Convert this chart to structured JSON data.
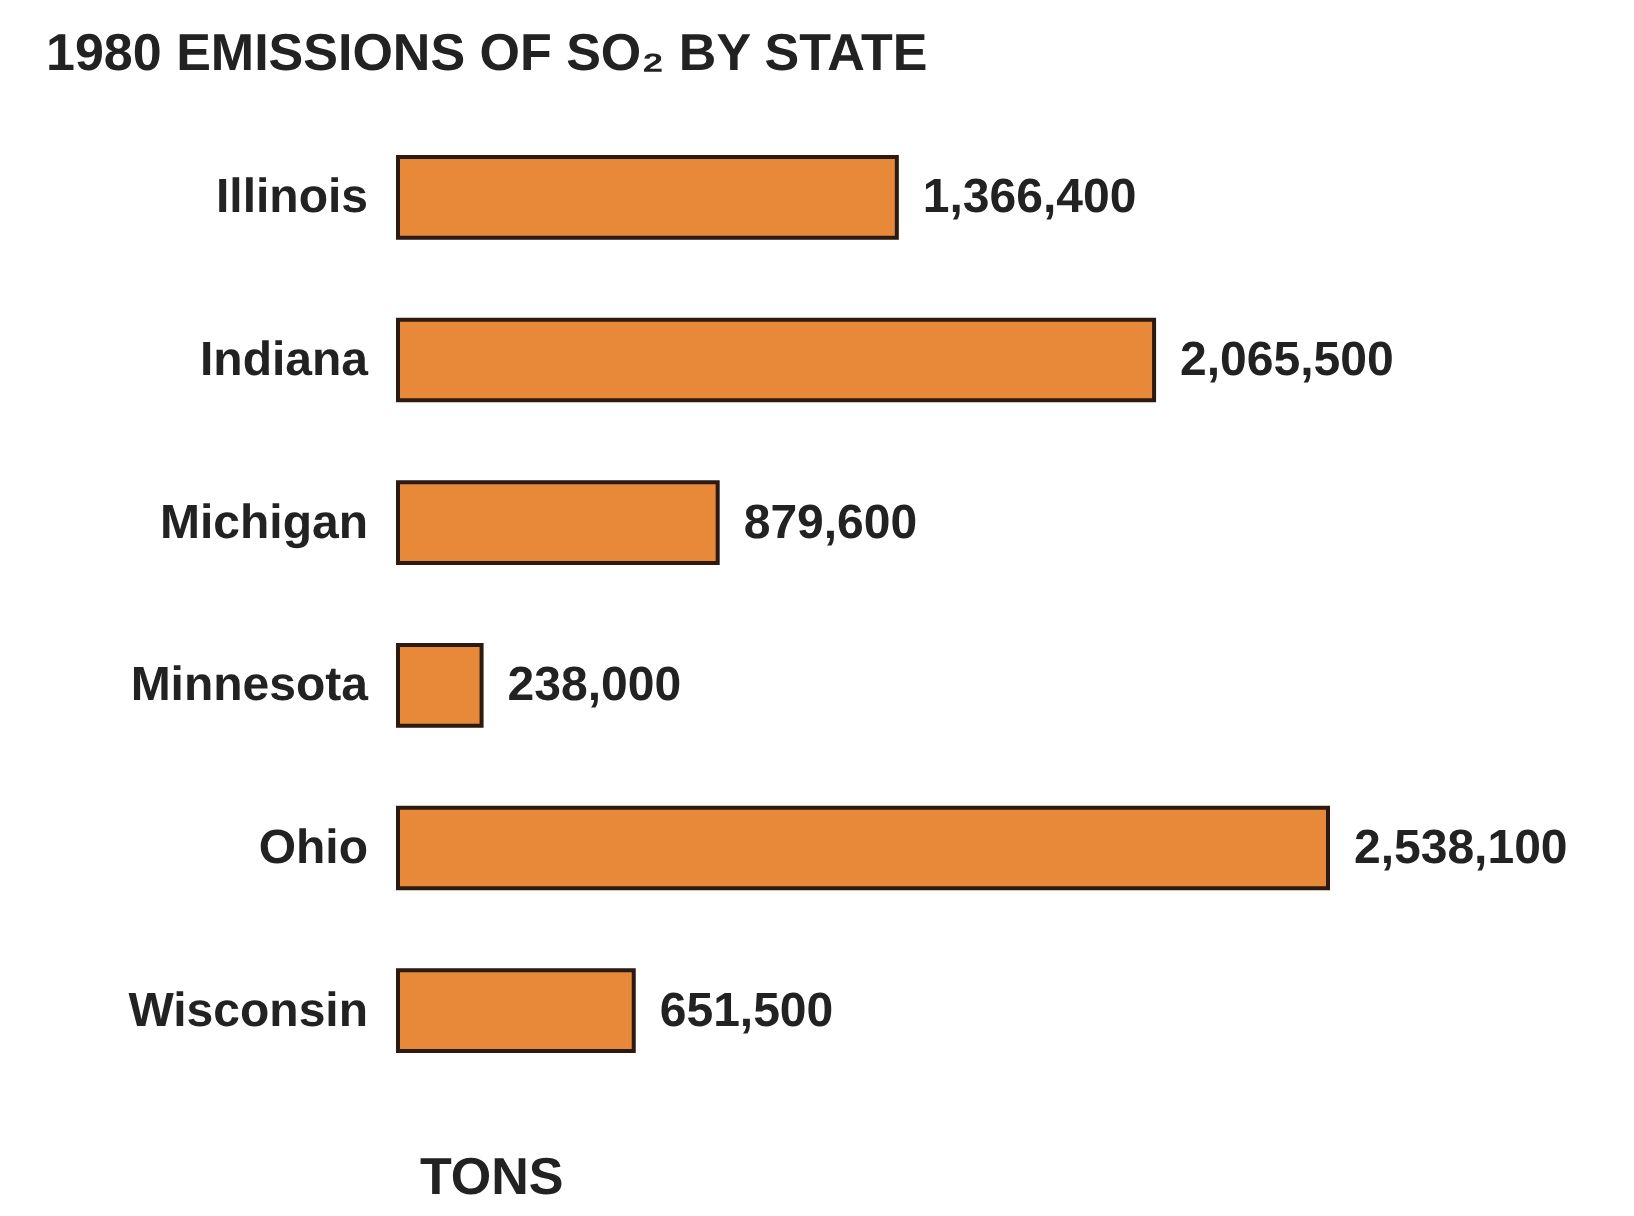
{
  "chart_data": {
    "type": "bar",
    "orientation": "horizontal",
    "title": "1980 EMISSIONS OF SO₂ BY STATE",
    "xlabel": "TONS",
    "categories": [
      "Illinois",
      "Indiana",
      "Michigan",
      "Minnesota",
      "Ohio",
      "Wisconsin"
    ],
    "values": [
      1366400,
      2065500,
      879600,
      238000,
      2538100,
      651500
    ],
    "value_labels": [
      "1,366,400",
      "2,065,500",
      "879,600",
      "238,000",
      "2,538,100",
      "651,500"
    ],
    "color": "#e8893a"
  }
}
